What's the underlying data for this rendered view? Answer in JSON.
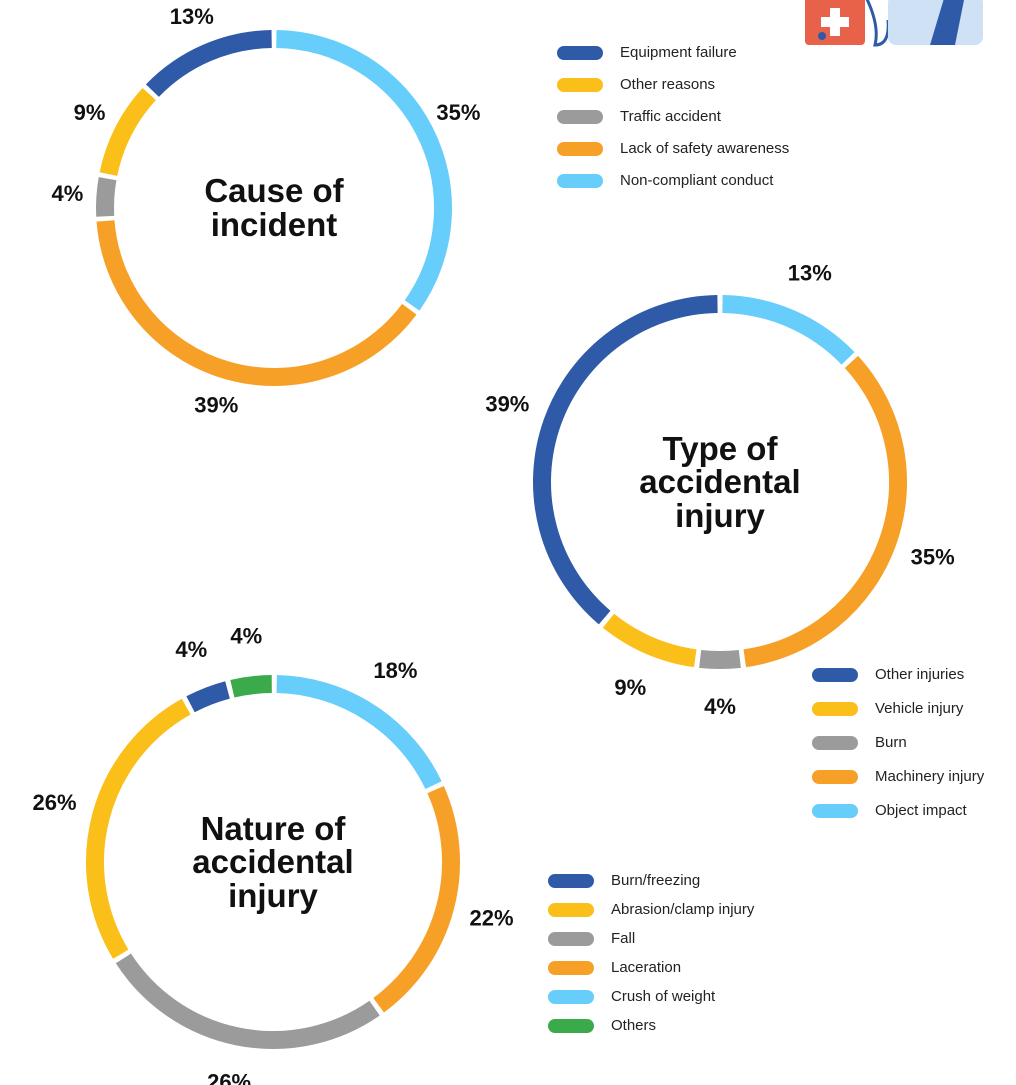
{
  "chart_data": [
    {
      "type": "donut",
      "title": "Cause of incident",
      "categories": [
        "Equipment failure",
        "Other reasons",
        "Traffic accident",
        "Lack of safety awareness",
        "Non-compliant conduct"
      ],
      "values": [
        13,
        9,
        4,
        39,
        35
      ],
      "value_labels": [
        "13%",
        "9%",
        "4%",
        "39%",
        "35%"
      ],
      "colors": [
        "#2f5aa8",
        "#fbbf1a",
        "#9b9b9b",
        "#f7a027",
        "#67cdfa"
      ]
    },
    {
      "type": "donut",
      "title": "Type of accidental injury",
      "categories": [
        "Other injuries",
        "Vehicle injury",
        "Burn",
        "Machinery injury",
        "Object impact"
      ],
      "values": [
        39,
        9,
        4,
        35,
        13
      ],
      "value_labels": [
        "39%",
        "9%",
        "4%",
        "35%",
        "13%"
      ],
      "colors": [
        "#2f5aa8",
        "#fbbf1a",
        "#9b9b9b",
        "#f7a027",
        "#67cdfa"
      ]
    },
    {
      "type": "donut",
      "title": "Nature of accidental injury",
      "categories": [
        "Burn/freezing",
        "Abrasion/clamp injury",
        "Fall",
        "Laceration",
        "Crush of weight",
        "Others"
      ],
      "values": [
        4,
        26,
        26,
        22,
        18,
        4
      ],
      "value_labels": [
        "4%",
        "26%",
        "26%",
        "22%",
        "18%",
        "4%"
      ],
      "colors": [
        "#2f5aa8",
        "#fbbf1a",
        "#9b9b9b",
        "#f7a027",
        "#67cdfa",
        "#3aaa4b"
      ]
    }
  ]
}
